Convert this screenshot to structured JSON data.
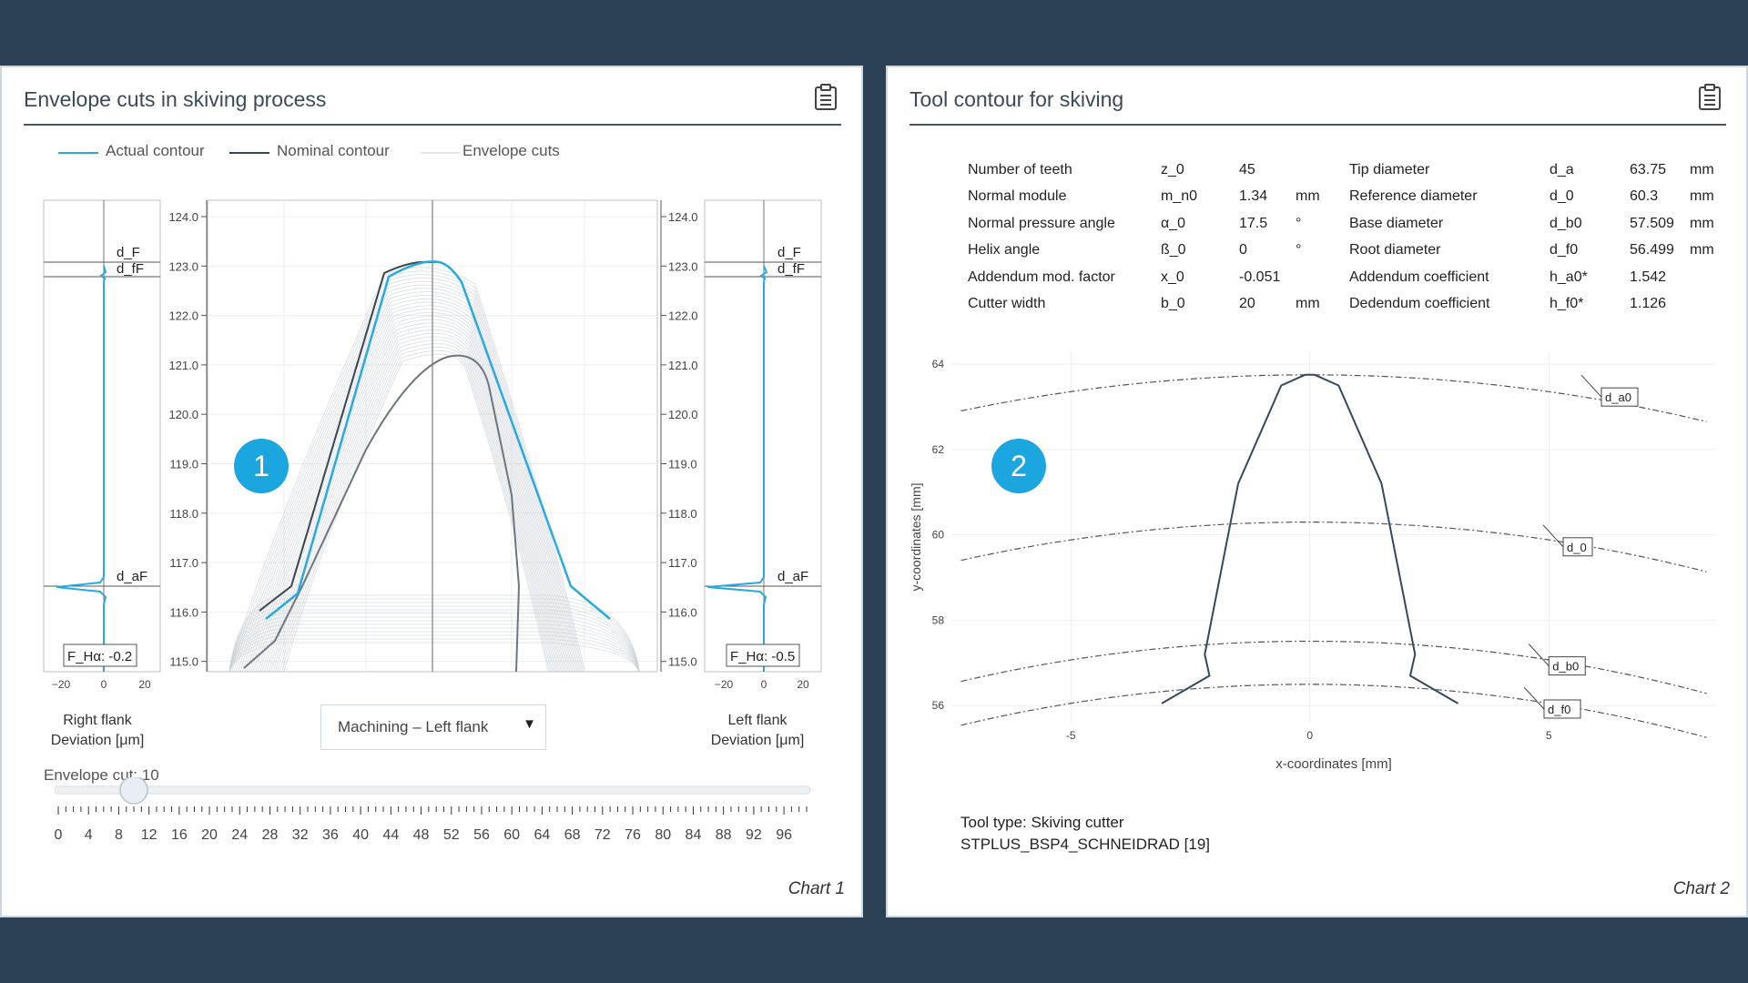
{
  "panel1": {
    "title": "Envelope cuts in skiving process",
    "clipboard_icon": "clipboard-icon",
    "legend": [
      {
        "label": "Actual contour",
        "color": "#29a9e1"
      },
      {
        "label": "Nominal contour",
        "color": "#3a4550"
      },
      {
        "label": "Envelope cuts",
        "color": "#d9dde2"
      }
    ],
    "left_plot": {
      "marker_F": "d_F",
      "marker_fF": "d_fF",
      "marker_aF": "d_aF",
      "fha": "F_Hα: -0.2",
      "xticks": [
        "−20",
        "0",
        "20"
      ],
      "label_line1": "Right flank",
      "label_line2": "Deviation [μm]"
    },
    "right_plot": {
      "marker_F": "d_F",
      "marker_fF": "d_fF",
      "marker_aF": "d_aF",
      "fha": "F_Hα: -0.5",
      "xticks": [
        "−20",
        "0",
        "20"
      ],
      "label_line1": "Left flank",
      "label_line2": "Deviation [μm]"
    },
    "y_axis_ticks": [
      "124.0",
      "123.0",
      "122.0",
      "121.0",
      "120.0",
      "119.0",
      "118.0",
      "117.0",
      "116.0",
      "115.0"
    ],
    "badge": "1",
    "dropdown": {
      "value": "Machining – Left flank",
      "arrow": "▼"
    },
    "slider": {
      "label": "Envelope cut: 10",
      "value": 10,
      "min": 0,
      "max": 99,
      "ticks": [
        "0",
        "4",
        "8",
        "12",
        "16",
        "20",
        "24",
        "28",
        "32",
        "36",
        "40",
        "44",
        "48",
        "52",
        "56",
        "60",
        "64",
        "68",
        "72",
        "76",
        "80",
        "84",
        "88",
        "92",
        "96"
      ]
    },
    "chart_label": "Chart 1",
    "colors": {
      "actual": "#29a9e1",
      "nominal": "#3a4550",
      "envelope": "#c9cfd6"
    }
  },
  "panel2": {
    "title": "Tool contour for skiving",
    "clipboard_icon": "clipboard-icon",
    "params_left": [
      {
        "name": "Number of teeth",
        "sym": "z_0",
        "val": "45",
        "unit": ""
      },
      {
        "name": "Normal module",
        "sym": "m_n0",
        "val": "1.34",
        "unit": "mm"
      },
      {
        "name": "Normal pressure angle",
        "sym": "α_0",
        "val": "17.5",
        "unit": "°"
      },
      {
        "name": "Helix angle",
        "sym": "ß_0",
        "val": "0",
        "unit": "°"
      },
      {
        "name": "Addendum mod. factor",
        "sym": "x_0",
        "val": "-0.051",
        "unit": ""
      },
      {
        "name": "Cutter width",
        "sym": "b_0",
        "val": "20",
        "unit": "mm"
      }
    ],
    "params_right": [
      {
        "name": "Tip diameter",
        "sym": "d_a",
        "val": "63.75",
        "unit": "mm"
      },
      {
        "name": "Reference diameter",
        "sym": "d_0",
        "val": "60.3",
        "unit": "mm"
      },
      {
        "name": "Base diameter",
        "sym": "d_b0",
        "val": "57.509",
        "unit": "mm"
      },
      {
        "name": "Root diameter",
        "sym": "d_f0",
        "val": "56.499",
        "unit": "mm"
      },
      {
        "name": "Addendum coefficient",
        "sym": "h_a0*",
        "val": "1.542",
        "unit": ""
      },
      {
        "name": "Dedendum coefficient",
        "sym": "h_f0*",
        "val": "1.126",
        "unit": ""
      }
    ],
    "badge": "2",
    "tool_type_line1": "Tool type: Skiving cutter",
    "tool_type_line2": "STPLUS_BSP4_SCHNEIDRAD [19]",
    "chart_label": "Chart 2"
  },
  "chart_data": {
    "type": "line",
    "xlabel": "x-coordinates [mm]",
    "ylabel": "y-coordinates [mm]",
    "xlim": [
      -7.5,
      8.5
    ],
    "ylim": [
      55.6,
      64.3
    ],
    "xticks": [
      -5,
      0,
      5
    ],
    "yticks": [
      56,
      58,
      60,
      62,
      64
    ],
    "grid": true,
    "circles": [
      {
        "name": "d_a0",
        "radius": 31.875
      },
      {
        "name": "d_0",
        "radius": 30.15
      },
      {
        "name": "d_b0",
        "radius": 28.7545
      },
      {
        "name": "d_f0",
        "radius": 28.2495
      }
    ],
    "series": [
      {
        "name": "",
        "x": [
          -3.1,
          -2.1,
          -2.2,
          -1.5,
          -0.6,
          -0.1,
          0.1,
          0.6,
          1.5,
          2.2,
          2.1,
          3.1
        ],
        "y": [
          56.05,
          56.7,
          57.2,
          61.2,
          63.5,
          63.75,
          63.75,
          63.5,
          61.2,
          57.2,
          56.7,
          56.05
        ]
      }
    ]
  }
}
